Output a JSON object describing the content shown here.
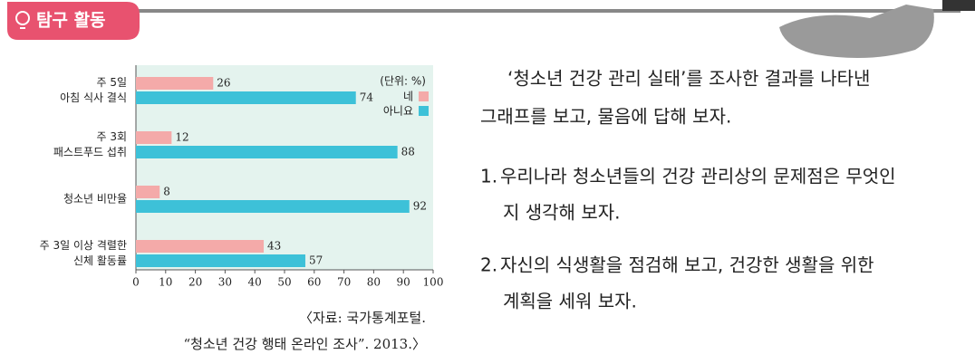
{
  "header": {
    "title": "탐구 활동"
  },
  "chart_data": {
    "type": "bar",
    "orientation": "horizontal",
    "categories": [
      [
        "주 5일",
        "아침 식사 결식"
      ],
      [
        "주 3회",
        "패스트푸드 섭취"
      ],
      [
        "청소년 비만율"
      ],
      [
        "주 3일 이상 격렬한",
        "신체 활동률"
      ]
    ],
    "series": [
      {
        "name": "네",
        "color": "#f4aaa9",
        "values": [
          26,
          12,
          8,
          43
        ]
      },
      {
        "name": "아니요",
        "color": "#3dc1d8",
        "values": [
          74,
          88,
          92,
          57
        ]
      }
    ],
    "unit_label": "(단위: %)",
    "xlim": [
      0,
      100
    ],
    "xticks": [
      0,
      10,
      20,
      30,
      40,
      50,
      60,
      70,
      80,
      90,
      100
    ],
    "grid": false,
    "background": "#e4f3ee",
    "legend": "top-right",
    "source": [
      "〈자료: 국가통계포털.",
      "“청소년 건강 행태 온라인 조사”. 2013.〉"
    ]
  },
  "body": {
    "intro": [
      "‘청소년 건강 관리 실태’를 조사한 결과를 나타낸",
      "그래프를 보고, 물음에 답해 보자."
    ],
    "questions": [
      {
        "number": "1.",
        "lines": [
          "우리나라 청소년들의 건강 관리상의 문제점은 무엇인",
          "지 생각해 보자."
        ]
      },
      {
        "number": "2.",
        "lines": [
          "자신의 식생활을 점검해 보고, 건강한 생활을 위한",
          "계획을 세워 보자."
        ]
      }
    ]
  }
}
